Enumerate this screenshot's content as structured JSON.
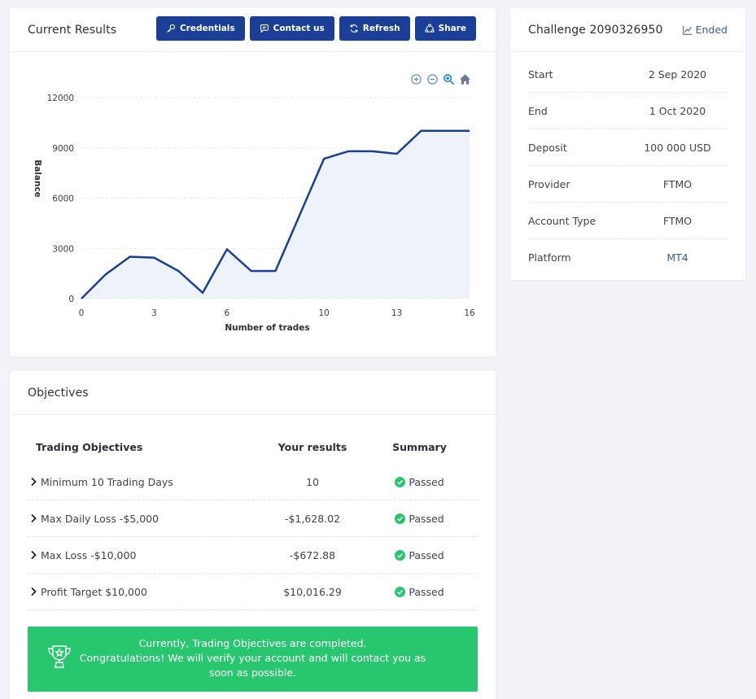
{
  "results": {
    "title": "Current Results",
    "buttons": {
      "credentials": "Credentials",
      "contact": "Contact us",
      "refresh": "Refresh",
      "share": "Share"
    }
  },
  "chart_data": {
    "type": "area",
    "xlabel": "Number of trades",
    "ylabel": "Balance",
    "xlim": [
      0,
      16
    ],
    "ylim": [
      0,
      12000
    ],
    "xticks": [
      0,
      3,
      6,
      10,
      13,
      16
    ],
    "yticks": [
      0,
      3000,
      6000,
      9000,
      12000
    ],
    "x": [
      0,
      1,
      2,
      3,
      4,
      5,
      6,
      7,
      8,
      9,
      10,
      11,
      12,
      13,
      14,
      15,
      16
    ],
    "y": [
      0,
      1450,
      2500,
      2450,
      1650,
      350,
      2950,
      1650,
      1650,
      5000,
      8350,
      8800,
      8800,
      8650,
      10016,
      10016,
      10016
    ],
    "line_color": "#1b3f96",
    "fill_color": "#eef2f9",
    "grid": "horizontal dashed"
  },
  "challenge": {
    "title": "Challenge 2090326950",
    "status": "Ended",
    "rows": [
      {
        "label": "Start",
        "value": "2 Sep 2020"
      },
      {
        "label": "End",
        "value": "1 Oct 2020"
      },
      {
        "label": "Deposit",
        "value": "100 000 USD"
      },
      {
        "label": "Provider",
        "value": "FTMO"
      },
      {
        "label": "Account Type",
        "value": "FTMO"
      },
      {
        "label": "Platform",
        "value": "MT4"
      }
    ]
  },
  "objectives": {
    "title": "Objectives",
    "headers": {
      "name": "Trading Objectives",
      "result": "Your results",
      "summary": "Summary"
    },
    "rows": [
      {
        "name": "Minimum 10 Trading Days",
        "result": "10",
        "summary": "Passed"
      },
      {
        "name": "Max Daily Loss -$5,000",
        "result": "-$1,628.02",
        "summary": "Passed"
      },
      {
        "name": "Max Loss -$10,000",
        "result": "-$672.88",
        "summary": "Passed"
      },
      {
        "name": "Profit Target $10,000",
        "result": "$10,016.29",
        "summary": "Passed"
      }
    ],
    "message_line1": "Currently, Trading Objectives are completed.",
    "message_line2": "Congratulations! We will verify your account and will contact you as soon as possible."
  },
  "colors": {
    "primary": "#1b3f96",
    "success": "#28c76f",
    "link": "#3a59a8"
  }
}
